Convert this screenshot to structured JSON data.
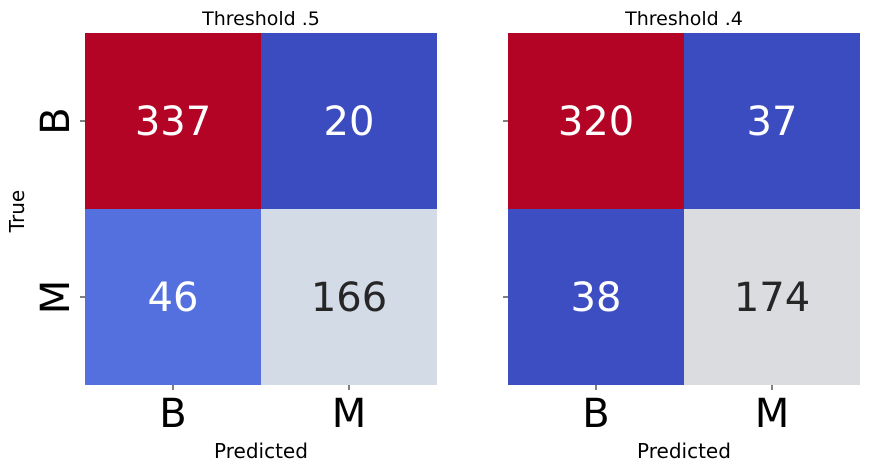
{
  "chart_data": [
    {
      "type": "heatmap",
      "title": "Threshold .5",
      "xlabel": "Predicted",
      "ylabel": "True",
      "x_categories": [
        "B",
        "M"
      ],
      "y_categories": [
        "B",
        "M"
      ],
      "values": [
        [
          337,
          20
        ],
        [
          46,
          166
        ]
      ],
      "cell_colors": [
        [
          "#b40426",
          "#3b4cc0"
        ],
        [
          "#5470de",
          "#d3dbe7"
        ]
      ],
      "text_colors": [
        [
          "#ffffff",
          "#ffffff"
        ],
        [
          "#ffffff",
          "#262626"
        ]
      ],
      "colorbar": false
    },
    {
      "type": "heatmap",
      "title": "Threshold .4",
      "xlabel": "Predicted",
      "ylabel": "",
      "x_categories": [
        "B",
        "M"
      ],
      "y_categories": [
        "B",
        "M"
      ],
      "values": [
        [
          320,
          37
        ],
        [
          38,
          174
        ]
      ],
      "cell_colors": [
        [
          "#b40426",
          "#3b4cc0"
        ],
        [
          "#3c4ec2",
          "#dadce0"
        ]
      ],
      "text_colors": [
        [
          "#ffffff",
          "#ffffff"
        ],
        [
          "#ffffff",
          "#262626"
        ]
      ],
      "colorbar": false
    }
  ]
}
